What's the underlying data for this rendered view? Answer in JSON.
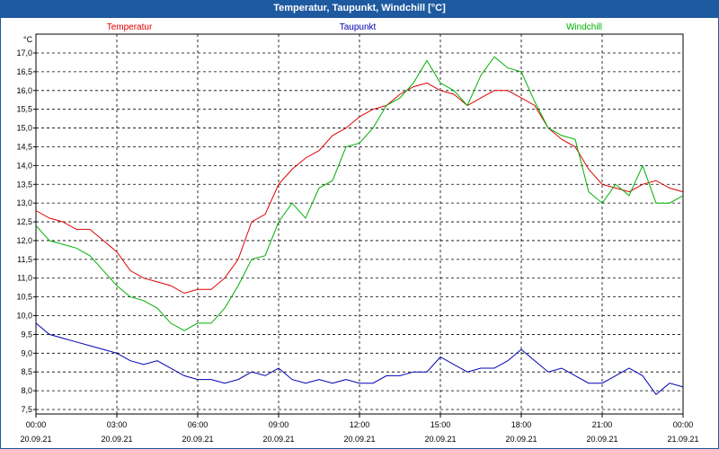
{
  "window": {
    "title": "Temperatur, Taupunkt, Windchill [°C]"
  },
  "chart_data": {
    "type": "line",
    "title": "Temperatur, Taupunkt, Windchill [°C]",
    "ylabel": "°C",
    "ylim": [
      7.5,
      17.0
    ],
    "yticks": [
      "7,5",
      "8,0",
      "8,5",
      "9,0",
      "9,5",
      "10,0",
      "10,5",
      "11,0",
      "11,5",
      "12,0",
      "12,5",
      "13,0",
      "13,5",
      "14,0",
      "14,5",
      "15,0",
      "15,5",
      "16,0",
      "16,5",
      "17,0"
    ],
    "xlim": [
      0,
      24
    ],
    "xticks": [
      {
        "time": "00:00",
        "date": "20.09.21"
      },
      {
        "time": "03:00",
        "date": "20.09.21"
      },
      {
        "time": "06:00",
        "date": "20.09.21"
      },
      {
        "time": "09:00",
        "date": "20.09.21"
      },
      {
        "time": "12:00",
        "date": "20.09.21"
      },
      {
        "time": "15:00",
        "date": "20.09.21"
      },
      {
        "time": "18:00",
        "date": "20.09.21"
      },
      {
        "time": "21:00",
        "date": "20.09.21"
      },
      {
        "time": "00:00",
        "date": "21.09.21"
      }
    ],
    "grid": true,
    "legend_position": "top",
    "series": [
      {
        "name": "Temperatur",
        "color": "#e00000",
        "x": [
          0,
          0.5,
          1,
          1.5,
          2,
          2.5,
          3,
          3.5,
          4,
          4.5,
          5,
          5.5,
          6,
          6.5,
          7,
          7.5,
          8,
          8.5,
          9,
          9.5,
          10,
          10.5,
          11,
          11.5,
          12,
          12.5,
          13,
          13.5,
          14,
          14.5,
          15,
          15.5,
          16,
          16.5,
          17,
          17.5,
          18,
          18.5,
          19,
          19.5,
          20,
          20.5,
          21,
          21.5,
          22,
          22.5,
          23,
          23.5,
          24
        ],
        "values": [
          12.8,
          12.6,
          12.5,
          12.3,
          12.3,
          12.0,
          11.7,
          11.2,
          11.0,
          10.9,
          10.8,
          10.6,
          10.7,
          10.7,
          11.0,
          11.5,
          12.5,
          12.7,
          13.5,
          13.9,
          14.2,
          14.4,
          14.8,
          15.0,
          15.3,
          15.5,
          15.6,
          15.9,
          16.1,
          16.2,
          16.0,
          15.9,
          15.6,
          15.8,
          16.0,
          16.0,
          15.8,
          15.6,
          15.0,
          14.7,
          14.5,
          13.9,
          13.5,
          13.4,
          13.3,
          13.5,
          13.6,
          13.4,
          13.3
        ]
      },
      {
        "name": "Taupunkt",
        "color": "#0000b0",
        "x": [
          0,
          0.5,
          1,
          1.5,
          2,
          2.5,
          3,
          3.5,
          4,
          4.5,
          5,
          5.5,
          6,
          6.5,
          7,
          7.5,
          8,
          8.5,
          9,
          9.5,
          10,
          10.5,
          11,
          11.5,
          12,
          12.5,
          13,
          13.5,
          14,
          14.5,
          15,
          15.5,
          16,
          16.5,
          17,
          17.5,
          18,
          18.5,
          19,
          19.5,
          20,
          20.5,
          21,
          21.5,
          22,
          22.5,
          23,
          23.5,
          24
        ],
        "values": [
          9.8,
          9.5,
          9.4,
          9.3,
          9.2,
          9.1,
          9.0,
          8.8,
          8.7,
          8.8,
          8.6,
          8.4,
          8.3,
          8.3,
          8.2,
          8.3,
          8.5,
          8.4,
          8.6,
          8.3,
          8.2,
          8.3,
          8.2,
          8.3,
          8.2,
          8.2,
          8.4,
          8.4,
          8.5,
          8.5,
          8.9,
          8.7,
          8.5,
          8.6,
          8.6,
          8.8,
          9.1,
          8.8,
          8.5,
          8.6,
          8.4,
          8.2,
          8.2,
          8.4,
          8.6,
          8.4,
          7.9,
          8.2,
          8.1
        ]
      },
      {
        "name": "Windchill",
        "color": "#00b000",
        "x": [
          0,
          0.5,
          1,
          1.5,
          2,
          2.5,
          3,
          3.5,
          4,
          4.5,
          5,
          5.5,
          6,
          6.5,
          7,
          7.5,
          8,
          8.5,
          9,
          9.5,
          10,
          10.5,
          11,
          11.5,
          12,
          12.5,
          13,
          13.5,
          14,
          14.5,
          15,
          15.5,
          16,
          16.5,
          17,
          17.5,
          18,
          18.5,
          19,
          19.5,
          20,
          20.5,
          21,
          21.5,
          22,
          22.5,
          23,
          23.5,
          24
        ],
        "values": [
          12.4,
          12.0,
          11.9,
          11.8,
          11.6,
          11.2,
          10.8,
          10.5,
          10.4,
          10.2,
          9.8,
          9.6,
          9.8,
          9.8,
          10.2,
          10.8,
          11.5,
          11.6,
          12.5,
          13.0,
          12.6,
          13.4,
          13.6,
          14.5,
          14.6,
          15.0,
          15.6,
          15.8,
          16.2,
          16.8,
          16.2,
          16.0,
          15.6,
          16.4,
          16.9,
          16.6,
          16.5,
          15.7,
          15.0,
          14.8,
          14.7,
          13.3,
          13.0,
          13.5,
          13.2,
          14.0,
          13.0,
          13.0,
          13.2
        ]
      }
    ]
  }
}
